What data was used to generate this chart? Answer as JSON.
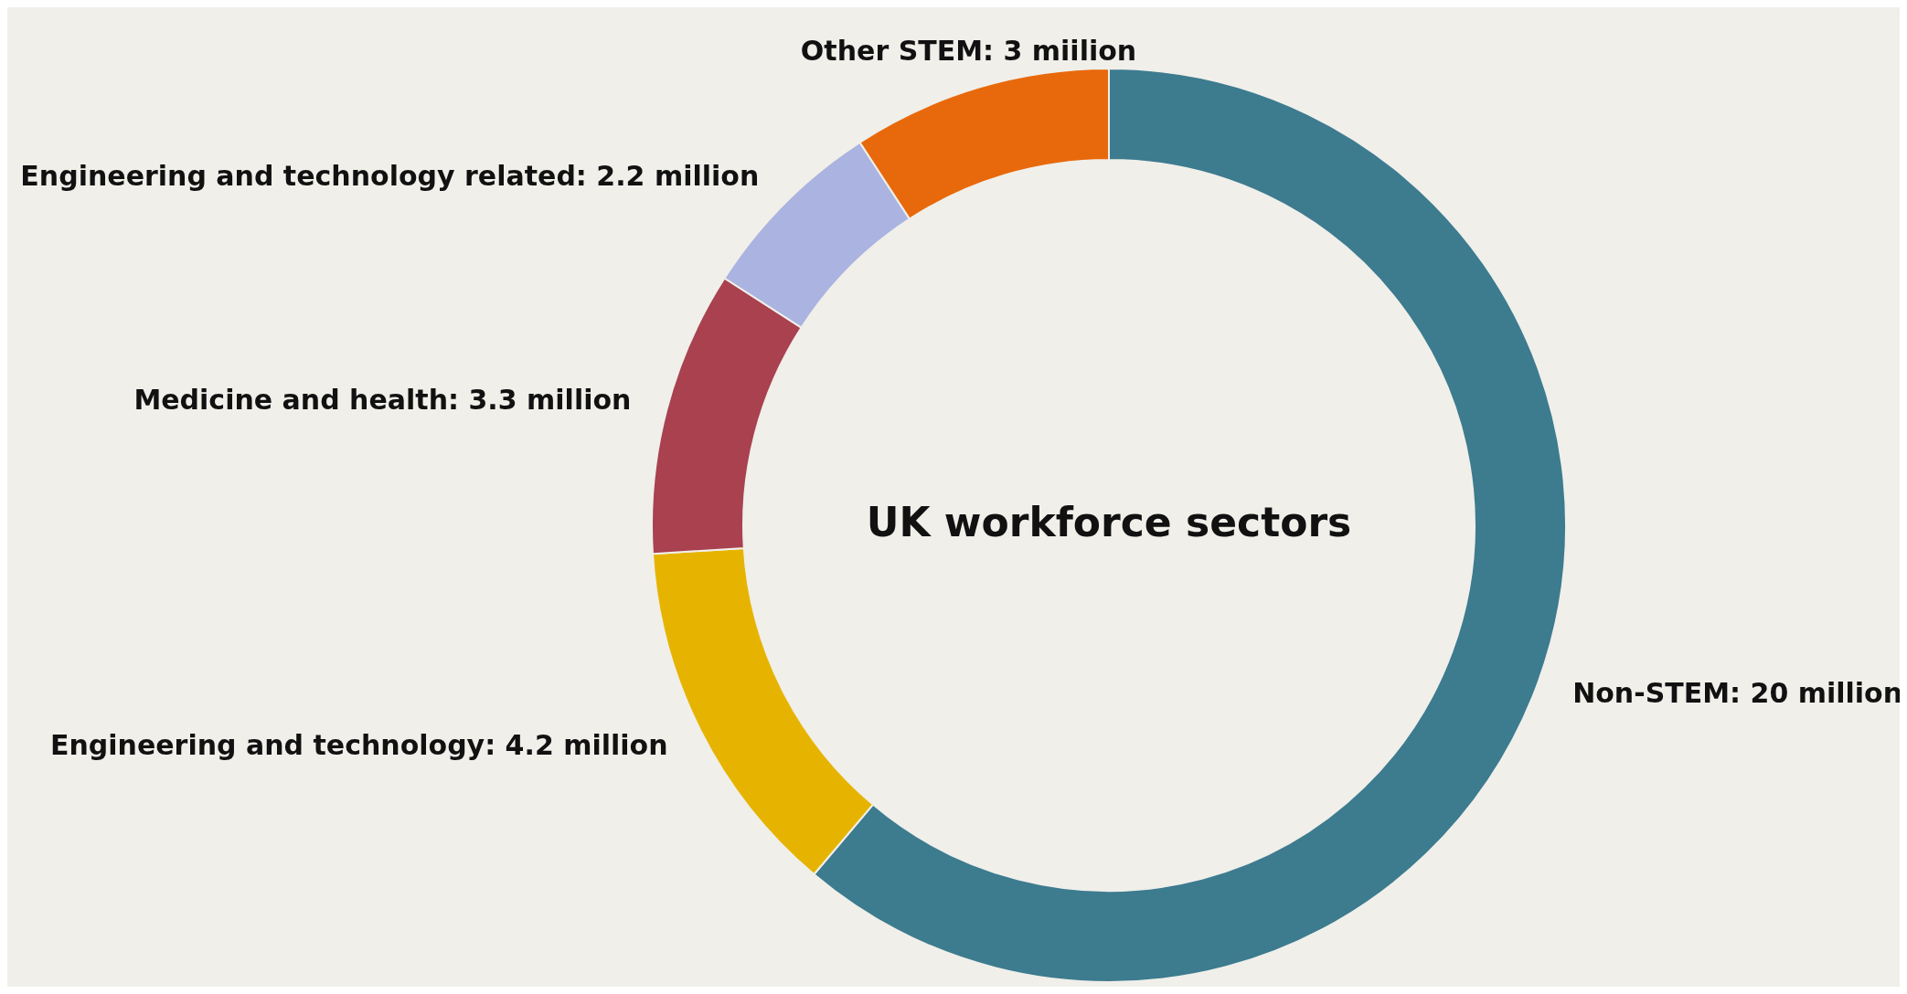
{
  "chart_data": {
    "type": "donut",
    "title": "UK workforce sectors",
    "categories": [
      "Non-STEM",
      "Engineering and technology",
      "Medicine and health",
      "Engineering and technology related",
      "Other STEM"
    ],
    "values": [
      20,
      4.2,
      3.3,
      2.2,
      3
    ],
    "colors": [
      "#3d7b8f",
      "#e6b400",
      "#a9414f",
      "#abb3e0",
      "#e8690b"
    ],
    "value_labels": [
      "20 million",
      "4.2 million",
      "3.3 million",
      "2.2 million",
      "3 miilion"
    ]
  }
}
